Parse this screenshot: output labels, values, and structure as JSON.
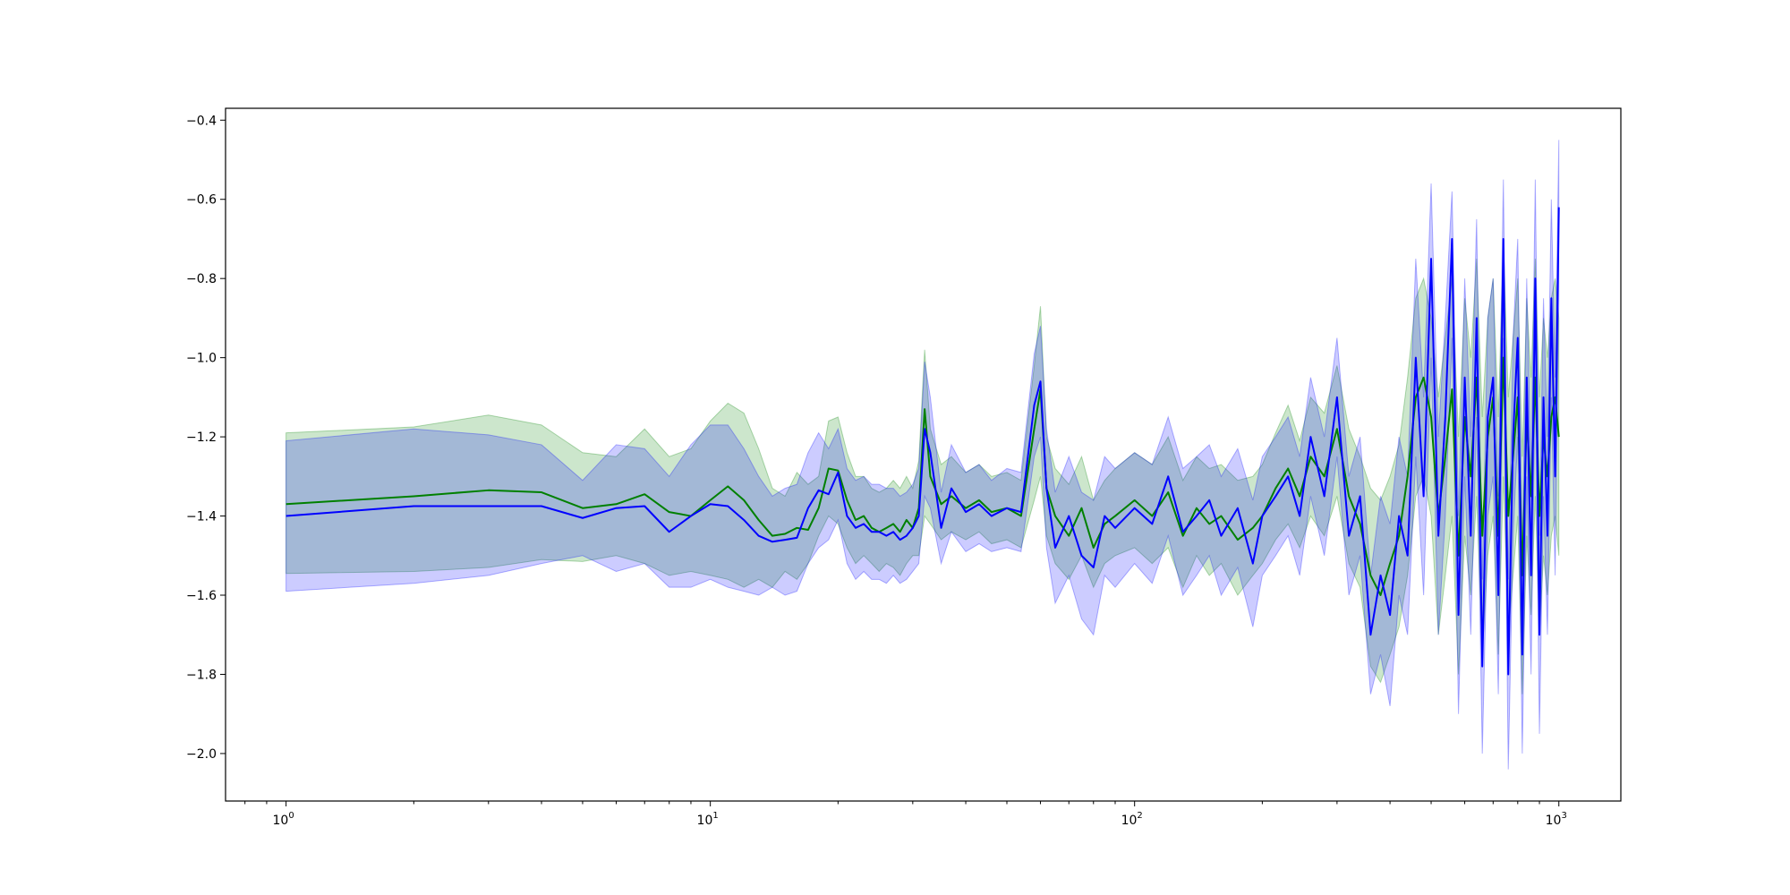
{
  "chart_data": {
    "type": "line",
    "title": "",
    "xlabel": "",
    "ylabel": "",
    "xscale": "log",
    "xlim": [
      0.72,
      1400
    ],
    "ylim": [
      -2.12,
      -0.37
    ],
    "grid": false,
    "legend": "none",
    "x_ticks": [
      {
        "value": 1,
        "base": "10",
        "exp": "0"
      },
      {
        "value": 10,
        "base": "10",
        "exp": "1"
      },
      {
        "value": 100,
        "base": "10",
        "exp": "2"
      },
      {
        "value": 1000,
        "base": "10",
        "exp": "3"
      }
    ],
    "y_ticks": [
      {
        "value": -0.4,
        "label": "−0.4"
      },
      {
        "value": -0.6,
        "label": "−0.6"
      },
      {
        "value": -0.8,
        "label": "−0.8"
      },
      {
        "value": -1.0,
        "label": "−1.0"
      },
      {
        "value": -1.2,
        "label": "−1.2"
      },
      {
        "value": -1.4,
        "label": "−1.4"
      },
      {
        "value": -1.6,
        "label": "−1.6"
      },
      {
        "value": -1.8,
        "label": "−1.8"
      },
      {
        "value": -2.0,
        "label": "−2.0"
      }
    ],
    "series": [
      {
        "color": "#008000",
        "band_color": "#008000",
        "band_opacity": 0.2,
        "x": [
          1,
          2,
          3,
          4,
          5,
          6,
          7,
          8,
          9,
          10,
          11,
          12,
          13,
          14,
          15,
          16,
          17,
          18,
          19,
          20,
          21,
          22,
          23,
          24,
          25,
          26,
          27,
          28,
          29,
          30,
          31,
          32,
          33,
          35,
          37,
          40,
          43,
          46,
          50,
          54,
          58,
          60,
          62,
          65,
          70,
          75,
          80,
          85,
          90,
          100,
          110,
          120,
          130,
          140,
          150,
          160,
          175,
          190,
          200,
          215,
          230,
          245,
          260,
          280,
          300,
          320,
          340,
          360,
          380,
          400,
          420,
          440,
          460,
          480,
          500,
          520,
          540,
          560,
          580,
          600,
          620,
          640,
          660,
          680,
          700,
          720,
          740,
          760,
          780,
          800,
          820,
          840,
          860,
          880,
          900,
          920,
          940,
          960,
          980,
          1000
        ],
        "y": [
          -1.37,
          -1.35,
          -1.335,
          -1.34,
          -1.38,
          -1.37,
          -1.345,
          -1.39,
          -1.4,
          -1.36,
          -1.325,
          -1.36,
          -1.41,
          -1.45,
          -1.445,
          -1.43,
          -1.435,
          -1.38,
          -1.28,
          -1.285,
          -1.36,
          -1.41,
          -1.4,
          -1.43,
          -1.44,
          -1.43,
          -1.42,
          -1.44,
          -1.41,
          -1.43,
          -1.38,
          -1.13,
          -1.3,
          -1.37,
          -1.35,
          -1.38,
          -1.36,
          -1.39,
          -1.38,
          -1.4,
          -1.18,
          -1.08,
          -1.33,
          -1.4,
          -1.45,
          -1.38,
          -1.48,
          -1.42,
          -1.4,
          -1.36,
          -1.4,
          -1.34,
          -1.45,
          -1.38,
          -1.42,
          -1.4,
          -1.46,
          -1.43,
          -1.4,
          -1.33,
          -1.28,
          -1.35,
          -1.25,
          -1.3,
          -1.18,
          -1.35,
          -1.42,
          -1.55,
          -1.6,
          -1.52,
          -1.45,
          -1.3,
          -1.1,
          -1.05,
          -1.15,
          -1.4,
          -1.25,
          -1.08,
          -1.5,
          -1.15,
          -1.3,
          -1.05,
          -1.45,
          -1.2,
          -1.1,
          -1.45,
          -1.0,
          -1.4,
          -1.25,
          -1.1,
          -1.55,
          -1.15,
          -1.35,
          -1.05,
          -1.4,
          -1.2,
          -1.3,
          -1.15,
          -1.1,
          -1.2
        ],
        "lower": [
          -1.545,
          -1.54,
          -1.53,
          -1.51,
          -1.515,
          -1.5,
          -1.52,
          -1.55,
          -1.54,
          -1.55,
          -1.56,
          -1.58,
          -1.56,
          -1.58,
          -1.54,
          -1.56,
          -1.52,
          -1.45,
          -1.4,
          -1.42,
          -1.48,
          -1.52,
          -1.5,
          -1.52,
          -1.54,
          -1.52,
          -1.53,
          -1.55,
          -1.52,
          -1.5,
          -1.5,
          -1.4,
          -1.42,
          -1.46,
          -1.44,
          -1.46,
          -1.44,
          -1.47,
          -1.46,
          -1.48,
          -1.36,
          -1.3,
          -1.45,
          -1.52,
          -1.56,
          -1.5,
          -1.58,
          -1.52,
          -1.5,
          -1.48,
          -1.52,
          -1.48,
          -1.58,
          -1.5,
          -1.55,
          -1.52,
          -1.6,
          -1.55,
          -1.52,
          -1.46,
          -1.42,
          -1.48,
          -1.4,
          -1.45,
          -1.35,
          -1.52,
          -1.58,
          -1.78,
          -1.82,
          -1.75,
          -1.68,
          -1.55,
          -1.35,
          -1.3,
          -1.4,
          -1.7,
          -1.55,
          -1.4,
          -1.8,
          -1.45,
          -1.6,
          -1.35,
          -1.75,
          -1.5,
          -1.4,
          -1.75,
          -1.3,
          -1.7,
          -1.55,
          -1.4,
          -1.85,
          -1.45,
          -1.65,
          -1.35,
          -1.7,
          -1.5,
          -1.6,
          -1.45,
          -1.4,
          -1.5
        ],
        "upper": [
          -1.19,
          -1.175,
          -1.145,
          -1.17,
          -1.24,
          -1.25,
          -1.18,
          -1.25,
          -1.23,
          -1.16,
          -1.115,
          -1.14,
          -1.23,
          -1.33,
          -1.35,
          -1.29,
          -1.32,
          -1.3,
          -1.16,
          -1.15,
          -1.24,
          -1.3,
          -1.3,
          -1.33,
          -1.34,
          -1.33,
          -1.31,
          -1.33,
          -1.3,
          -1.33,
          -1.26,
          -0.98,
          -1.18,
          -1.27,
          -1.25,
          -1.29,
          -1.27,
          -1.3,
          -1.29,
          -1.31,
          -1.02,
          -0.87,
          -1.2,
          -1.28,
          -1.32,
          -1.25,
          -1.36,
          -1.31,
          -1.28,
          -1.24,
          -1.27,
          -1.2,
          -1.31,
          -1.25,
          -1.28,
          -1.27,
          -1.31,
          -1.3,
          -1.27,
          -1.19,
          -1.12,
          -1.21,
          -1.1,
          -1.14,
          -1.02,
          -1.18,
          -1.25,
          -1.33,
          -1.36,
          -1.3,
          -1.22,
          -1.05,
          -0.85,
          -0.8,
          -0.9,
          -1.1,
          -0.95,
          -0.8,
          -1.2,
          -0.85,
          -1.0,
          -0.75,
          -1.15,
          -0.9,
          -0.8,
          -1.15,
          -0.7,
          -1.1,
          -0.95,
          -0.8,
          -1.25,
          -0.85,
          -1.05,
          -0.75,
          -1.1,
          -0.9,
          -1.0,
          -0.85,
          -0.8,
          -0.9
        ]
      },
      {
        "color": "#0000ff",
        "band_color": "#0000ff",
        "band_opacity": 0.2,
        "x": [
          1,
          2,
          3,
          4,
          5,
          6,
          7,
          8,
          9,
          10,
          11,
          12,
          13,
          14,
          15,
          16,
          17,
          18,
          19,
          20,
          21,
          22,
          23,
          24,
          25,
          26,
          27,
          28,
          29,
          30,
          31,
          32,
          33,
          35,
          37,
          40,
          43,
          46,
          50,
          54,
          58,
          60,
          62,
          65,
          70,
          75,
          80,
          85,
          90,
          100,
          110,
          120,
          130,
          140,
          150,
          160,
          175,
          190,
          200,
          215,
          230,
          245,
          260,
          280,
          300,
          320,
          340,
          360,
          380,
          400,
          420,
          440,
          460,
          480,
          500,
          520,
          540,
          560,
          580,
          600,
          620,
          640,
          660,
          680,
          700,
          720,
          740,
          760,
          780,
          800,
          820,
          840,
          860,
          880,
          900,
          920,
          940,
          960,
          980,
          1000
        ],
        "y": [
          -1.4,
          -1.375,
          -1.375,
          -1.375,
          -1.405,
          -1.38,
          -1.375,
          -1.44,
          -1.4,
          -1.37,
          -1.375,
          -1.41,
          -1.45,
          -1.465,
          -1.46,
          -1.455,
          -1.38,
          -1.335,
          -1.345,
          -1.29,
          -1.4,
          -1.43,
          -1.42,
          -1.44,
          -1.44,
          -1.45,
          -1.44,
          -1.46,
          -1.45,
          -1.43,
          -1.4,
          -1.18,
          -1.24,
          -1.43,
          -1.33,
          -1.39,
          -1.37,
          -1.4,
          -1.38,
          -1.39,
          -1.12,
          -1.06,
          -1.33,
          -1.48,
          -1.4,
          -1.5,
          -1.53,
          -1.4,
          -1.43,
          -1.38,
          -1.42,
          -1.3,
          -1.44,
          -1.4,
          -1.36,
          -1.45,
          -1.38,
          -1.52,
          -1.4,
          -1.35,
          -1.3,
          -1.4,
          -1.2,
          -1.35,
          -1.1,
          -1.45,
          -1.35,
          -1.7,
          -1.55,
          -1.65,
          -1.4,
          -1.5,
          -1.0,
          -1.35,
          -0.75,
          -1.45,
          -1.15,
          -0.7,
          -1.65,
          -1.05,
          -1.45,
          -0.9,
          -1.78,
          -1.15,
          -1.05,
          -1.6,
          -0.7,
          -1.8,
          -1.2,
          -0.95,
          -1.75,
          -1.05,
          -1.55,
          -0.8,
          -1.7,
          -1.1,
          -1.45,
          -0.85,
          -1.3,
          -0.62
        ],
        "lower": [
          -1.59,
          -1.57,
          -1.55,
          -1.52,
          -1.5,
          -1.54,
          -1.52,
          -1.58,
          -1.58,
          -1.56,
          -1.58,
          -1.59,
          -1.6,
          -1.58,
          -1.6,
          -1.59,
          -1.52,
          -1.48,
          -1.46,
          -1.41,
          -1.52,
          -1.56,
          -1.54,
          -1.56,
          -1.56,
          -1.57,
          -1.55,
          -1.57,
          -1.56,
          -1.54,
          -1.52,
          -1.35,
          -1.38,
          -1.52,
          -1.44,
          -1.49,
          -1.47,
          -1.49,
          -1.48,
          -1.49,
          -1.25,
          -1.2,
          -1.48,
          -1.62,
          -1.55,
          -1.66,
          -1.7,
          -1.55,
          -1.58,
          -1.52,
          -1.57,
          -1.45,
          -1.6,
          -1.55,
          -1.5,
          -1.6,
          -1.53,
          -1.68,
          -1.55,
          -1.5,
          -1.45,
          -1.55,
          -1.35,
          -1.5,
          -1.25,
          -1.6,
          -1.5,
          -1.85,
          -1.75,
          -1.88,
          -1.6,
          -1.7,
          -1.25,
          -1.6,
          -1.0,
          -1.7,
          -1.4,
          -0.95,
          -1.9,
          -1.3,
          -1.7,
          -1.15,
          -2.0,
          -1.4,
          -1.3,
          -1.85,
          -0.95,
          -2.04,
          -1.45,
          -1.2,
          -2.0,
          -1.3,
          -1.8,
          -1.05,
          -1.95,
          -1.35,
          -1.7,
          -1.1,
          -1.55,
          -0.85
        ],
        "upper": [
          -1.21,
          -1.18,
          -1.195,
          -1.22,
          -1.31,
          -1.22,
          -1.23,
          -1.3,
          -1.22,
          -1.17,
          -1.17,
          -1.23,
          -1.3,
          -1.35,
          -1.33,
          -1.32,
          -1.24,
          -1.19,
          -1.23,
          -1.18,
          -1.28,
          -1.31,
          -1.3,
          -1.32,
          -1.32,
          -1.33,
          -1.33,
          -1.35,
          -1.34,
          -1.32,
          -1.28,
          -1.01,
          -1.1,
          -1.34,
          -1.22,
          -1.29,
          -1.27,
          -1.31,
          -1.28,
          -1.29,
          -0.99,
          -0.92,
          -1.18,
          -1.34,
          -1.25,
          -1.34,
          -1.36,
          -1.25,
          -1.28,
          -1.24,
          -1.27,
          -1.15,
          -1.28,
          -1.25,
          -1.22,
          -1.3,
          -1.23,
          -1.36,
          -1.25,
          -1.2,
          -1.15,
          -1.25,
          -1.05,
          -1.2,
          -0.95,
          -1.3,
          -1.2,
          -1.55,
          -1.35,
          -1.42,
          -1.2,
          -1.3,
          -0.75,
          -1.1,
          -0.56,
          -1.2,
          -0.9,
          -0.58,
          -1.4,
          -0.8,
          -1.2,
          -0.65,
          -1.56,
          -0.9,
          -0.8,
          -1.35,
          -0.55,
          -1.56,
          -0.95,
          -0.7,
          -1.5,
          -0.8,
          -1.3,
          -0.55,
          -1.45,
          -0.85,
          -1.2,
          -0.6,
          -1.05,
          -0.45
        ]
      }
    ]
  }
}
